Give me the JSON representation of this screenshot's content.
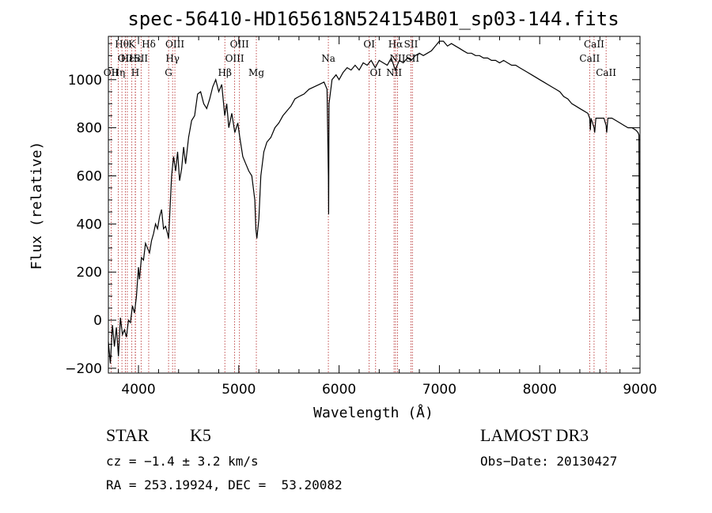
{
  "chart_data": {
    "type": "line",
    "title": "spec-56410-HD165618N524154B01_sp03-144.fits",
    "xlabel": "Wavelength (Å)",
    "ylabel": "Flux (relative)",
    "xlim": [
      3700,
      9000
    ],
    "ylim": [
      -220,
      1180
    ],
    "x_ticks": [
      4000,
      5000,
      6000,
      7000,
      8000,
      9000
    ],
    "x_tick_labels": [
      "4000",
      "5000",
      "6000",
      "7000",
      "8000",
      "9000"
    ],
    "y_ticks": [
      -200,
      0,
      200,
      400,
      600,
      800,
      1000
    ],
    "y_tick_labels": [
      "−200",
      "0",
      "200",
      "400",
      "600",
      "800",
      "1000"
    ],
    "line_color": "#000000",
    "marker_color": "#b22222",
    "series": [
      {
        "name": "spectrum",
        "points": [
          [
            3700,
            -90
          ],
          [
            3720,
            -180
          ],
          [
            3740,
            -20
          ],
          [
            3760,
            -110
          ],
          [
            3780,
            -30
          ],
          [
            3800,
            -150
          ],
          [
            3820,
            10
          ],
          [
            3840,
            -60
          ],
          [
            3860,
            -40
          ],
          [
            3880,
            -70
          ],
          [
            3900,
            0
          ],
          [
            3920,
            -10
          ],
          [
            3940,
            60
          ],
          [
            3960,
            30
          ],
          [
            3980,
            100
          ],
          [
            4000,
            220
          ],
          [
            4010,
            170
          ],
          [
            4030,
            260
          ],
          [
            4050,
            250
          ],
          [
            4070,
            320
          ],
          [
            4090,
            300
          ],
          [
            4110,
            280
          ],
          [
            4130,
            330
          ],
          [
            4150,
            360
          ],
          [
            4170,
            400
          ],
          [
            4190,
            380
          ],
          [
            4210,
            430
          ],
          [
            4230,
            460
          ],
          [
            4250,
            380
          ],
          [
            4270,
            390
          ],
          [
            4290,
            360
          ],
          [
            4300,
            340
          ],
          [
            4310,
            420
          ],
          [
            4330,
            600
          ],
          [
            4350,
            680
          ],
          [
            4370,
            620
          ],
          [
            4390,
            700
          ],
          [
            4410,
            580
          ],
          [
            4430,
            630
          ],
          [
            4450,
            720
          ],
          [
            4470,
            650
          ],
          [
            4500,
            760
          ],
          [
            4530,
            830
          ],
          [
            4560,
            850
          ],
          [
            4590,
            940
          ],
          [
            4620,
            950
          ],
          [
            4650,
            900
          ],
          [
            4680,
            880
          ],
          [
            4710,
            920
          ],
          [
            4740,
            970
          ],
          [
            4770,
            1000
          ],
          [
            4800,
            950
          ],
          [
            4830,
            980
          ],
          [
            4860,
            850
          ],
          [
            4880,
            900
          ],
          [
            4900,
            800
          ],
          [
            4930,
            860
          ],
          [
            4960,
            780
          ],
          [
            4990,
            820
          ],
          [
            5010,
            760
          ],
          [
            5040,
            680
          ],
          [
            5070,
            650
          ],
          [
            5100,
            620
          ],
          [
            5130,
            600
          ],
          [
            5160,
            500
          ],
          [
            5170,
            380
          ],
          [
            5180,
            340
          ],
          [
            5200,
            420
          ],
          [
            5220,
            600
          ],
          [
            5250,
            700
          ],
          [
            5280,
            740
          ],
          [
            5320,
            760
          ],
          [
            5360,
            800
          ],
          [
            5400,
            820
          ],
          [
            5440,
            850
          ],
          [
            5480,
            870
          ],
          [
            5520,
            890
          ],
          [
            5560,
            920
          ],
          [
            5600,
            930
          ],
          [
            5650,
            940
          ],
          [
            5700,
            960
          ],
          [
            5750,
            970
          ],
          [
            5800,
            980
          ],
          [
            5850,
            990
          ],
          [
            5880,
            960
          ],
          [
            5893,
            600
          ],
          [
            5896,
            440
          ],
          [
            5900,
            900
          ],
          [
            5930,
            1000
          ],
          [
            5970,
            1020
          ],
          [
            6000,
            1000
          ],
          [
            6040,
            1030
          ],
          [
            6080,
            1050
          ],
          [
            6120,
            1040
          ],
          [
            6160,
            1060
          ],
          [
            6200,
            1040
          ],
          [
            6240,
            1070
          ],
          [
            6280,
            1060
          ],
          [
            6320,
            1080
          ],
          [
            6360,
            1050
          ],
          [
            6400,
            1080
          ],
          [
            6440,
            1070
          ],
          [
            6480,
            1060
          ],
          [
            6520,
            1090
          ],
          [
            6560,
            1040
          ],
          [
            6600,
            1080
          ],
          [
            6640,
            1070
          ],
          [
            6680,
            1090
          ],
          [
            6720,
            1080
          ],
          [
            6760,
            1100
          ],
          [
            6800,
            1110
          ],
          [
            6840,
            1100
          ],
          [
            6880,
            1110
          ],
          [
            6920,
            1120
          ],
          [
            6960,
            1140
          ],
          [
            7000,
            1160
          ],
          [
            7040,
            1160
          ],
          [
            7080,
            1140
          ],
          [
            7120,
            1150
          ],
          [
            7160,
            1140
          ],
          [
            7200,
            1130
          ],
          [
            7240,
            1120
          ],
          [
            7280,
            1110
          ],
          [
            7320,
            1110
          ],
          [
            7360,
            1100
          ],
          [
            7400,
            1100
          ],
          [
            7440,
            1090
          ],
          [
            7480,
            1090
          ],
          [
            7520,
            1080
          ],
          [
            7560,
            1080
          ],
          [
            7600,
            1070
          ],
          [
            7640,
            1080
          ],
          [
            7680,
            1070
          ],
          [
            7720,
            1060
          ],
          [
            7760,
            1060
          ],
          [
            7800,
            1050
          ],
          [
            7840,
            1040
          ],
          [
            7880,
            1030
          ],
          [
            7920,
            1020
          ],
          [
            7960,
            1010
          ],
          [
            8000,
            1000
          ],
          [
            8040,
            990
          ],
          [
            8080,
            980
          ],
          [
            8120,
            970
          ],
          [
            8160,
            960
          ],
          [
            8200,
            950
          ],
          [
            8240,
            930
          ],
          [
            8280,
            920
          ],
          [
            8320,
            900
          ],
          [
            8360,
            890
          ],
          [
            8400,
            880
          ],
          [
            8440,
            870
          ],
          [
            8480,
            860
          ],
          [
            8498,
            840
          ],
          [
            8505,
            790
          ],
          [
            8512,
            840
          ],
          [
            8542,
            800
          ],
          [
            8548,
            780
          ],
          [
            8560,
            840
          ],
          [
            8600,
            840
          ],
          [
            8640,
            840
          ],
          [
            8662,
            810
          ],
          [
            8668,
            780
          ],
          [
            8680,
            840
          ],
          [
            8720,
            840
          ],
          [
            8760,
            830
          ],
          [
            8800,
            820
          ],
          [
            8840,
            810
          ],
          [
            8880,
            800
          ],
          [
            8920,
            800
          ],
          [
            8960,
            790
          ],
          [
            8980,
            780
          ],
          [
            8990,
            770
          ],
          [
            8995,
            0
          ],
          [
            9000,
            0
          ]
        ]
      }
    ],
    "line_markers": [
      {
        "wavelength": 3835,
        "label": "Hθ",
        "row": 0
      },
      {
        "wavelength": 3869,
        "label": "OII",
        "row": 1
      },
      {
        "wavelength": 3889,
        "label": "Hε",
        "row": 1
      },
      {
        "wavelength": 3934,
        "label": "K",
        "row": 0
      },
      {
        "wavelength": 3970,
        "label": "Hε",
        "row": 1
      },
      {
        "wavelength": 4026,
        "label": "SII",
        "row": 1
      },
      {
        "wavelength": 4102,
        "label": "Hδ",
        "row": 0
      },
      {
        "wavelength": 3727,
        "label": "OII",
        "row": 2
      },
      {
        "wavelength": 3798,
        "label": "Hη",
        "row": 2
      },
      {
        "wavelength": 3968,
        "label": "H",
        "row": 2
      },
      {
        "wavelength": 4300,
        "label": "G",
        "row": 2
      },
      {
        "wavelength": 4340,
        "label": "Hγ",
        "row": 1
      },
      {
        "wavelength": 4363,
        "label": "OIII",
        "row": 0
      },
      {
        "wavelength": 4861,
        "label": "Hβ",
        "row": 2
      },
      {
        "wavelength": 4959,
        "label": "OIII",
        "row": 1
      },
      {
        "wavelength": 5007,
        "label": "OIII",
        "row": 0
      },
      {
        "wavelength": 5175,
        "label": "Mg",
        "row": 2
      },
      {
        "wavelength": 5893,
        "label": "Na",
        "row": 1
      },
      {
        "wavelength": 6300,
        "label": "OI",
        "row": 0
      },
      {
        "wavelength": 6364,
        "label": "OI",
        "row": 2
      },
      {
        "wavelength": 6548,
        "label": "NII",
        "row": 2
      },
      {
        "wavelength": 6563,
        "label": "Hα",
        "row": 0
      },
      {
        "wavelength": 6583,
        "label": "NII",
        "row": 1
      },
      {
        "wavelength": 6717,
        "label": "SII",
        "row": 0
      },
      {
        "wavelength": 6731,
        "label": "SII",
        "row": 1
      },
      {
        "wavelength": 8498,
        "label": "CaII",
        "row": 1
      },
      {
        "wavelength": 8542,
        "label": "CaII",
        "row": 0
      },
      {
        "wavelength": 8662,
        "label": "CaII",
        "row": 2
      }
    ]
  },
  "info": {
    "class": "STAR",
    "subclass": "K5",
    "survey": "LAMOST DR3",
    "cz": "cz = −1.4 ± 3.2 km/s",
    "obs_date": "Obs−Date: 20130427",
    "radec": "RA = 253.19924, DEC =  53.20082"
  }
}
